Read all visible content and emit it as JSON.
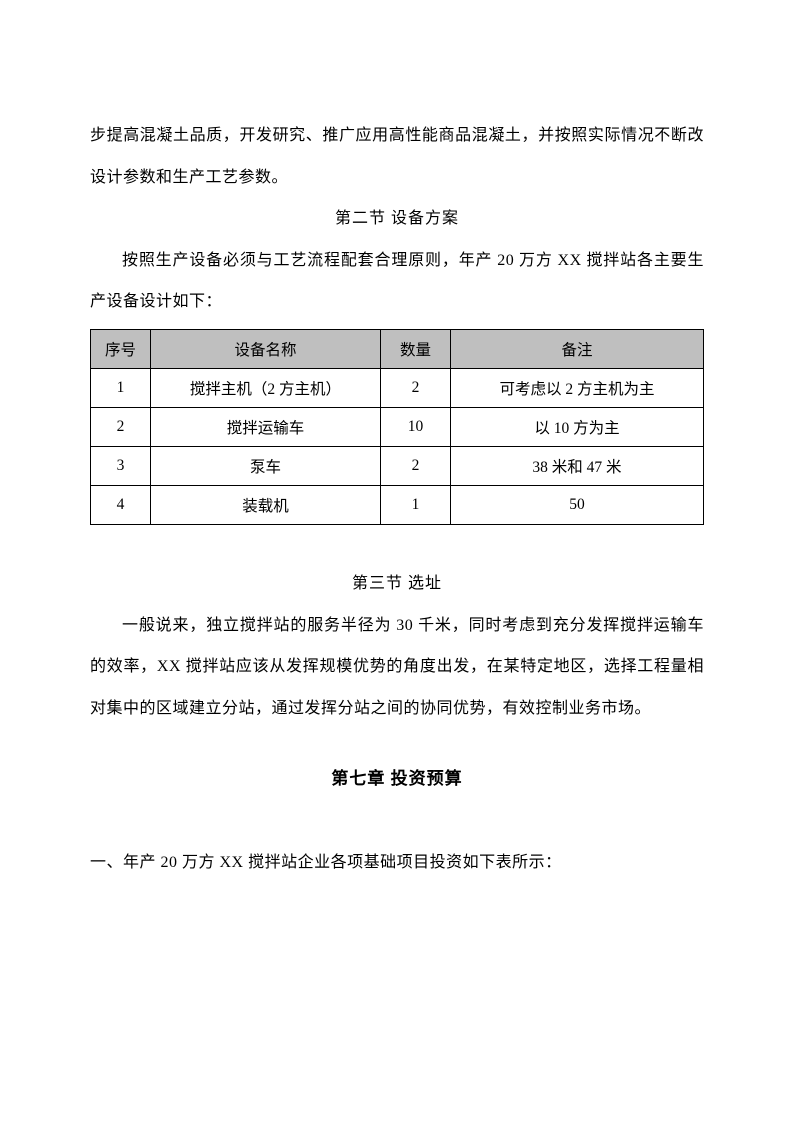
{
  "paragraphs": {
    "p1": "步提高混凝土品质，开发研究、推广应用高性能商品混凝土，并按照实际情况不断改设计参数和生产工艺参数。",
    "p2": "按照生产设备必须与工艺流程配套合理原则，年产 20 万方 XX 搅拌站各主要生产设备设计如下：",
    "p3": "一般说来，独立搅拌站的服务半径为 30 千米，同时考虑到充分发挥搅拌运输车的效率，XX 搅拌站应该从发挥规模优势的角度出发，在某特定地区，选择工程量相对集中的区域建立分站，通过发挥分站之间的协同优势，有效控制业务市场。",
    "p4": "一、年产 20 万方 XX 搅拌站企业各项基础项目投资如下表所示："
  },
  "headings": {
    "section2": "第二节  设备方案",
    "section3": "第三节  选址",
    "chapter7": "第七章  投资预算"
  },
  "table": {
    "headers": {
      "seq": "序号",
      "name": "设备名称",
      "qty": "数量",
      "note": "备注"
    },
    "rows": [
      {
        "seq": "1",
        "name": "搅拌主机（2 方主机）",
        "qty": "2",
        "note": "可考虑以 2 方主机为主"
      },
      {
        "seq": "2",
        "name": "搅拌运输车",
        "qty": "10",
        "note": "以 10 方为主"
      },
      {
        "seq": "3",
        "name": "泵车",
        "qty": "2",
        "note": "38 米和 47 米"
      },
      {
        "seq": "4",
        "name": "装载机",
        "qty": "1",
        "note": "50"
      }
    ]
  }
}
